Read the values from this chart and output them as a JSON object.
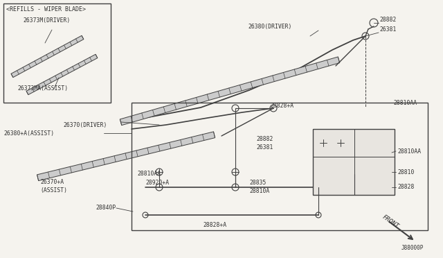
{
  "bg_color": "#f5f3ee",
  "line_color": "#404040",
  "text_color": "#303030",
  "diagram_id": "J88000P",
  "refills_label": "<REFILLS - WIPER BLADE>",
  "driver_refill_label": "26373M(DRIVER)",
  "assist_refill_label": "26373MA(ASSIST)"
}
